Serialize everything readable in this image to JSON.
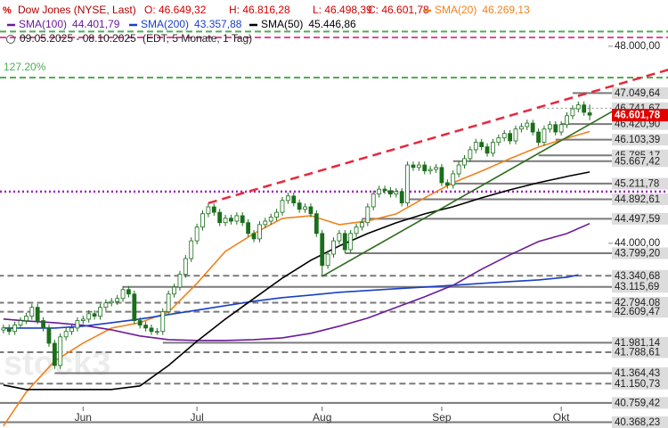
{
  "chart_data": {
    "type": "candlestick",
    "title": "Dow Jones (NYSE, Last)",
    "ohlc_text": [
      "O: 46.649,32",
      "H: 46.816,28",
      "L: 46.498,39",
      "C: 46.601,78"
    ],
    "period": "09.05.2025 - 08.10.2025",
    "period_note": "(EDT, 5 Monate, 1 Tag)",
    "watermark": "stock3",
    "xlim": [
      0.4,
      107.9
    ],
    "xticks": [
      {
        "value": 15,
        "label": "Jun"
      },
      {
        "value": 35,
        "label": "Jul"
      },
      {
        "value": 57,
        "label": "Aug"
      },
      {
        "value": 78,
        "label": "Sep"
      },
      {
        "value": 99,
        "label": "Okt"
      }
    ],
    "ylim": [
      40250,
      48940
    ],
    "yticks": [
      {
        "value": 44000,
        "label": "44.000,00"
      },
      {
        "value": 48000,
        "label": "48.000,00"
      }
    ],
    "candles": {
      "color": "#1b6e1b",
      "open": [
        42300,
        42240,
        42280,
        42210,
        42340,
        42430,
        42520,
        42700,
        42430,
        42280,
        41970,
        41520,
        42100,
        42210,
        42280,
        42430,
        42460,
        42570,
        42520,
        42700,
        42790,
        42820,
        42880,
        43060,
        42970,
        42430,
        42340,
        42280,
        42210,
        42210,
        42610,
        42970,
        43110,
        43370,
        43690,
        44050,
        44330,
        44600,
        44740,
        44630,
        44420,
        44510,
        44450,
        44560,
        44420,
        44200,
        44090,
        44380,
        44450,
        44530,
        44630,
        44870,
        44960,
        44820,
        44690,
        44740,
        44600,
        44200,
        43550,
        43780,
        44050,
        44200,
        43870,
        44200,
        44330,
        44420,
        44740,
        45000,
        45100,
        45070,
        45000,
        45050,
        44820,
        45590,
        45540,
        45590,
        45470,
        45500,
        45540,
        45230,
        45180,
        45410,
        45590,
        45720,
        45900,
        46050,
        45960,
        45830,
        46050,
        46140,
        46230,
        46080,
        46320,
        46370,
        46440,
        46260,
        46050,
        46320,
        46410,
        46260,
        46410,
        46590,
        46730,
        46810,
        46649.32
      ],
      "high": [
        42370,
        42350,
        42350,
        42410,
        42500,
        42590,
        42770,
        42770,
        42500,
        42350,
        42040,
        42170,
        42280,
        42350,
        42500,
        42530,
        42640,
        42640,
        42770,
        42860,
        42890,
        42950,
        43130,
        43130,
        43040,
        42500,
        42410,
        42350,
        42280,
        42680,
        43040,
        43180,
        43440,
        43760,
        44120,
        44400,
        44670,
        44810,
        44810,
        44700,
        44580,
        44580,
        44630,
        44630,
        44490,
        44270,
        44450,
        44520,
        44600,
        44700,
        44940,
        45030,
        45030,
        44890,
        44810,
        44810,
        44670,
        44270,
        43850,
        44120,
        44270,
        44270,
        44270,
        44400,
        44490,
        44810,
        45070,
        45170,
        45170,
        45140,
        45120,
        45120,
        45660,
        45660,
        45660,
        45660,
        45570,
        45610,
        45610,
        45300,
        45480,
        45660,
        45790,
        45970,
        46120,
        46120,
        46030,
        46120,
        46210,
        46300,
        46300,
        46390,
        46440,
        46510,
        46510,
        46330,
        46390,
        46480,
        46480,
        46480,
        46660,
        46800,
        46880,
        46880,
        46816.28
      ],
      "low": [
        42170,
        42170,
        42140,
        42140,
        42270,
        42360,
        42450,
        42360,
        42210,
        41900,
        41450,
        41450,
        42030,
        42140,
        42210,
        42360,
        42390,
        42450,
        42450,
        42630,
        42720,
        42750,
        42810,
        42900,
        42360,
        42270,
        42210,
        42140,
        42140,
        42140,
        42540,
        42900,
        43040,
        43300,
        43620,
        43980,
        44260,
        44530,
        44560,
        44350,
        44350,
        44380,
        44380,
        44350,
        44130,
        44020,
        44020,
        44310,
        44380,
        44460,
        44560,
        44800,
        44750,
        44620,
        44620,
        44530,
        44130,
        43340,
        43480,
        43710,
        43980,
        43800,
        43800,
        44130,
        44260,
        44350,
        44670,
        44930,
        45000,
        44930,
        44930,
        44750,
        44750,
        45470,
        45470,
        45400,
        45400,
        45430,
        45160,
        45110,
        45110,
        45340,
        45520,
        45650,
        45830,
        45890,
        45760,
        45760,
        45980,
        46070,
        46010,
        46010,
        46250,
        46300,
        46190,
        45980,
        45980,
        46250,
        46190,
        46190,
        46340,
        46520,
        46660,
        46590,
        46498.39
      ],
      "close": [
        42240,
        42280,
        42210,
        42340,
        42430,
        42520,
        42700,
        42430,
        42280,
        41970,
        41520,
        42100,
        42210,
        42280,
        42430,
        42460,
        42570,
        42520,
        42700,
        42790,
        42820,
        42880,
        43060,
        42970,
        42430,
        42340,
        42280,
        42210,
        42210,
        42610,
        42970,
        43110,
        43370,
        43690,
        44050,
        44330,
        44600,
        44740,
        44630,
        44420,
        44510,
        44450,
        44560,
        44420,
        44200,
        44090,
        44380,
        44450,
        44530,
        44630,
        44870,
        44960,
        44820,
        44690,
        44740,
        44600,
        44200,
        43550,
        43780,
        44050,
        44200,
        43870,
        44200,
        44330,
        44420,
        44740,
        45000,
        45100,
        45070,
        45000,
        45050,
        44820,
        45590,
        45540,
        45590,
        45470,
        45500,
        45540,
        45230,
        45180,
        45410,
        45590,
        45720,
        45900,
        46050,
        45960,
        45830,
        46050,
        46140,
        46230,
        46080,
        46320,
        46370,
        46440,
        46260,
        46050,
        46320,
        46410,
        46260,
        46410,
        46590,
        46730,
        46810,
        46660,
        46601.78
      ]
    },
    "series": [
      {
        "name": "SMA(20)",
        "value_label": "46.269,13",
        "color": "#f0821e",
        "x": [
          1,
          5,
          10,
          15,
          20,
          25,
          30,
          35,
          40,
          45,
          50,
          55,
          60,
          65,
          70,
          75,
          80,
          85,
          90,
          95,
          100,
          104
        ],
        "values": [
          40290,
          40977,
          41611,
          41973,
          42280,
          42389,
          42606,
          43186,
          43837,
          44199,
          44507,
          44561,
          44380,
          44453,
          44597,
          44923,
          45231,
          45466,
          45720,
          45955,
          46136,
          46269.13
        ]
      },
      {
        "name": "SMA(100)",
        "value_label": "44.401,79",
        "color": "#6a1b9a",
        "x": [
          1,
          5,
          10,
          15,
          20,
          25,
          30,
          35,
          40,
          45,
          50,
          55,
          60,
          65,
          70,
          75,
          80,
          85,
          90,
          95,
          100,
          104
        ],
        "values": [
          42462,
          42425,
          42389,
          42335,
          42244,
          42118,
          42045,
          42027,
          42027,
          42045,
          42081,
          42172,
          42317,
          42480,
          42697,
          42914,
          43149,
          43475,
          43765,
          44036,
          44199,
          44401.79
        ]
      },
      {
        "name": "SMA(200)",
        "value_label": "43.357,88",
        "color": "#1a3fc4",
        "x": [
          1,
          5,
          10,
          15,
          20,
          25,
          30,
          35,
          40,
          45,
          50,
          55,
          60,
          65,
          70,
          75,
          80,
          85,
          90,
          95,
          100,
          102
        ],
        "values": [
          42280,
          42280,
          42280,
          42317,
          42389,
          42462,
          42552,
          42643,
          42733,
          42824,
          42896,
          42950,
          43005,
          43041,
          43077,
          43113,
          43149,
          43186,
          43222,
          43258,
          43312,
          43357.88
        ]
      },
      {
        "name": "SMA(50)",
        "value_label": "45.446,86",
        "color": "#000000",
        "x": [
          1,
          5,
          10,
          15,
          20,
          25,
          30,
          35,
          40,
          45,
          50,
          55,
          60,
          65,
          70,
          75,
          80,
          85,
          90,
          95,
          100,
          104
        ],
        "values": [
          41122,
          41032,
          41032,
          41032,
          41032,
          41104,
          41520,
          42009,
          42462,
          42878,
          43294,
          43656,
          43946,
          44199,
          44416,
          44597,
          44742,
          44923,
          45086,
          45231,
          45358,
          45446.86
        ]
      }
    ],
    "trendlines": [
      {
        "color": "#e8283c",
        "dashed": true,
        "x": [
          37,
          118
        ],
        "values": [
          44815,
          47530
        ]
      },
      {
        "color": "#2e6b1e",
        "dashed": false,
        "x": [
          57,
          108
        ],
        "values": [
          43330,
          46679
        ]
      }
    ],
    "hlines": [
      {
        "value": 48300,
        "color": "#4caf50",
        "style": "dashed"
      },
      {
        "value": 48180,
        "color": "#e8449a",
        "style": "dashed"
      },
      {
        "value": 47366,
        "color": "#4caf50",
        "style": "dashed",
        "label": "127.20%"
      },
      {
        "value": 45050,
        "color": "#a020c0",
        "style": "dotted"
      }
    ],
    "levels": [
      {
        "value": 47049.64,
        "label": "47.049,64",
        "from": 101,
        "style": "solid"
      },
      {
        "value": 46741.67,
        "label": "46.741,67",
        "from": 95,
        "style": "dotted"
      },
      {
        "value": 46420.9,
        "label": "46.420,90",
        "from": 99,
        "style": "solid"
      },
      {
        "value": 46103.39,
        "label": "46.103,39",
        "from": 98,
        "style": "solid"
      },
      {
        "value": 45785.17,
        "label": "45.785,17",
        "from": 95,
        "style": "solid"
      },
      {
        "value": 45667.42,
        "label": "45.667,42",
        "from": 80,
        "style": "solid"
      },
      {
        "value": 45211.78,
        "label": "45.211,78",
        "from": 80,
        "style": "solid"
      },
      {
        "value": 44892.61,
        "label": "44.892,61",
        "from": 72,
        "style": "solid"
      },
      {
        "value": 44497.59,
        "label": "44.497,59",
        "from": 64,
        "style": "solid"
      },
      {
        "value": 43799.2,
        "label": "43.799,20",
        "from": 61,
        "style": "solid"
      },
      {
        "value": 43340.68,
        "label": "43.340,68",
        "from": 0,
        "style": "dashed"
      },
      {
        "value": 43115.69,
        "label": "43.115,69",
        "from": 22,
        "style": "solid"
      },
      {
        "value": 42794.08,
        "label": "42.794,08",
        "from": 0,
        "style": "dashed"
      },
      {
        "value": 42609.47,
        "label": "42.609,47",
        "from": 0,
        "style": "dashed"
      },
      {
        "value": 41981.14,
        "label": "41.981,14",
        "from": 29,
        "style": "solid"
      },
      {
        "value": 41788.61,
        "label": "41.788,61",
        "from": 0,
        "style": "dashed"
      },
      {
        "value": 41364.43,
        "label": "41.364,43",
        "from": 10,
        "style": "solid"
      },
      {
        "value": 41150.73,
        "label": "41.150,73",
        "from": 0,
        "style": "dashed"
      },
      {
        "value": 40759.42,
        "label": "40.759,42",
        "from": 0,
        "style": "solid"
      },
      {
        "value": 40368.23,
        "label": "40.368,23",
        "from": 0,
        "style": "solid"
      }
    ],
    "last": {
      "value": 46601.78,
      "label": "46.601,78",
      "color": "#e00000"
    }
  }
}
